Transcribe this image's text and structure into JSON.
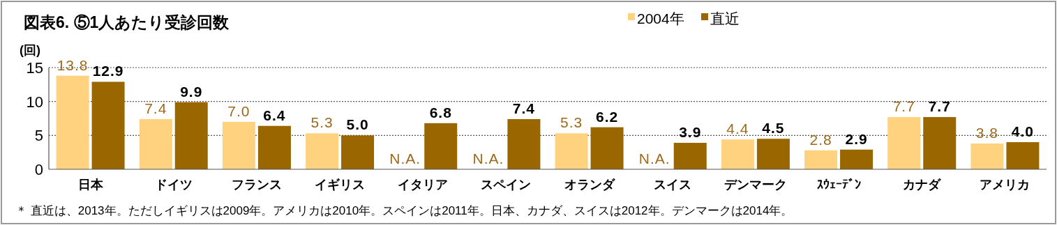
{
  "chart_data": {
    "type": "bar",
    "title": "図表6. ⑤1人あたり受診回数",
    "ylabel": "(回)",
    "categories": [
      "日本",
      "ドイツ",
      "フランス",
      "イギリス",
      "イタリア",
      "スペイン",
      "オランダ",
      "スイス",
      "デンマーク",
      "ｽｳｪｰﾃﾞﾝ",
      "カナダ",
      "アメリカ"
    ],
    "series": [
      {
        "name": "2004年",
        "color": "#ffd27f",
        "values": [
          13.8,
          7.4,
          7.0,
          5.3,
          null,
          null,
          5.3,
          null,
          4.4,
          2.8,
          7.7,
          3.8
        ],
        "value_labels": [
          "13.8",
          "7.4",
          "7.0",
          "5.3",
          "N.A.",
          "N.A.",
          "5.3",
          "N.A.",
          "4.4",
          "2.8",
          "7.7",
          "3.8"
        ]
      },
      {
        "name": "直近",
        "color": "#996600",
        "values": [
          12.9,
          9.9,
          6.4,
          5.0,
          6.8,
          7.4,
          6.2,
          3.9,
          4.5,
          2.9,
          7.7,
          4.0
        ],
        "value_labels": [
          "12.9",
          "9.9",
          "6.4",
          "5.0",
          "6.8",
          "7.4",
          "6.2",
          "3.9",
          "4.5",
          "2.9",
          "7.7",
          "4.0"
        ]
      }
    ],
    "ylim": [
      0,
      15
    ],
    "yticks": [
      0,
      5,
      10,
      15
    ],
    "grid": "y",
    "legend": "top",
    "annotations": [
      "＊ 直近は、2013年。ただしイギリスは2009年。アメリカは2010年。スペインは2011年。日本、カナダ、スイスは2012年。デンマークは2014年。"
    ]
  }
}
